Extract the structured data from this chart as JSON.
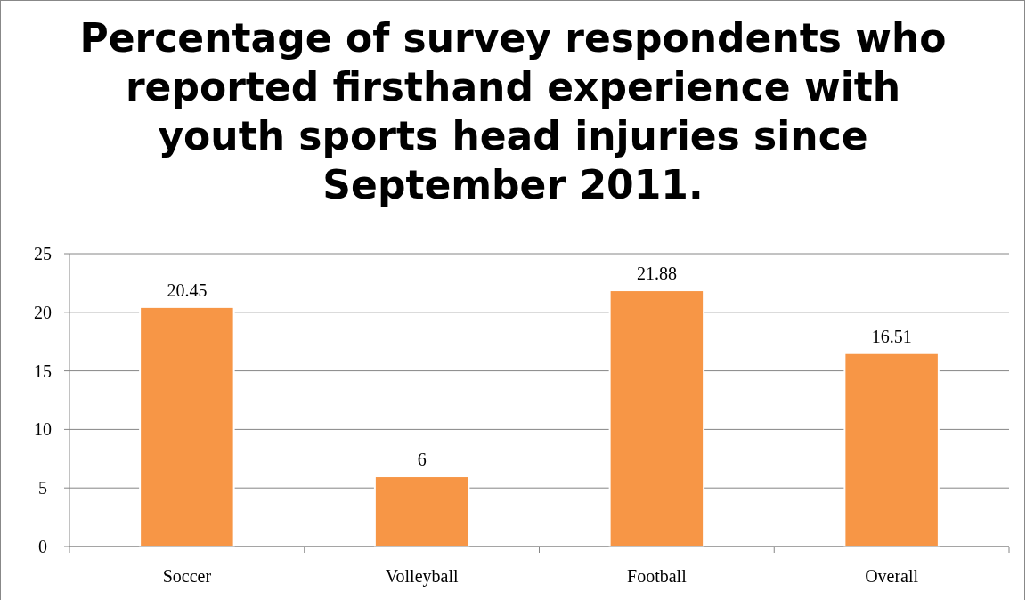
{
  "chart_data": {
    "type": "bar",
    "title": "Percentage of survey respondents who reported firsthand experience with youth sports head injuries since September 2011.",
    "categories": [
      "Soccer",
      "Volleyball",
      "Football",
      "Overall"
    ],
    "values": [
      20.45,
      6,
      21.88,
      16.51
    ],
    "color": "#f79646",
    "ylim": [
      0,
      25
    ],
    "yticks": [
      0,
      5,
      10,
      15,
      20,
      25
    ],
    "grid": "y",
    "data_labels": true
  }
}
